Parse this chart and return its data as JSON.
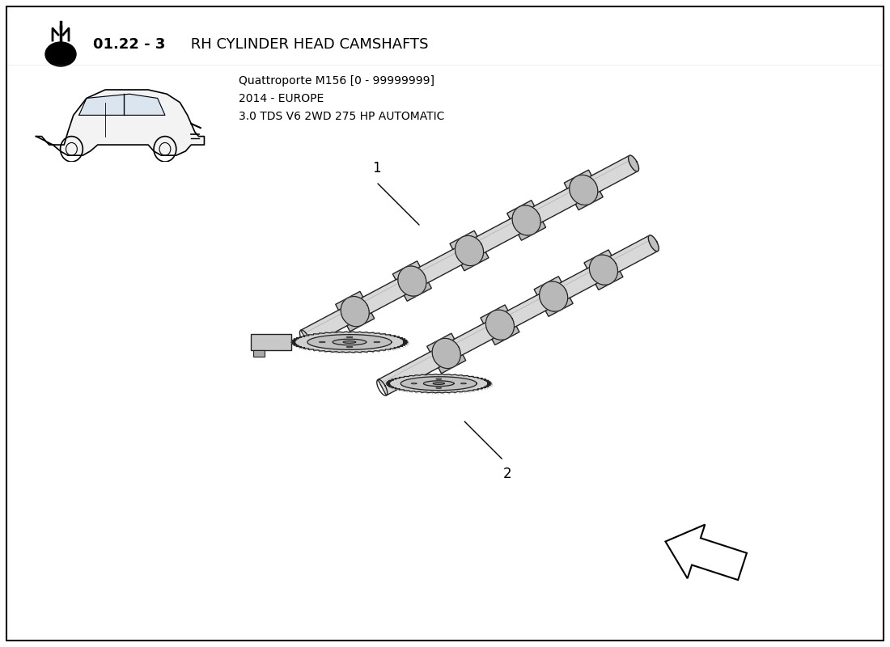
{
  "title_bold": "01.22 - 3",
  "title_normal": " RH CYLINDER HEAD CAMSHAFTS",
  "subtitle_line1": "Quattroporte M156 [0 - 99999999]",
  "subtitle_line2": "2014 - EUROPE",
  "subtitle_line3": "3.0 TDS V6 2WD 275 HP AUTOMATIC",
  "label1": "1",
  "label2": "2",
  "bg_color": "#FFFFFF",
  "line_color": "#1a1a1a",
  "title_fontsize": 13,
  "subtitle_fontsize": 10
}
